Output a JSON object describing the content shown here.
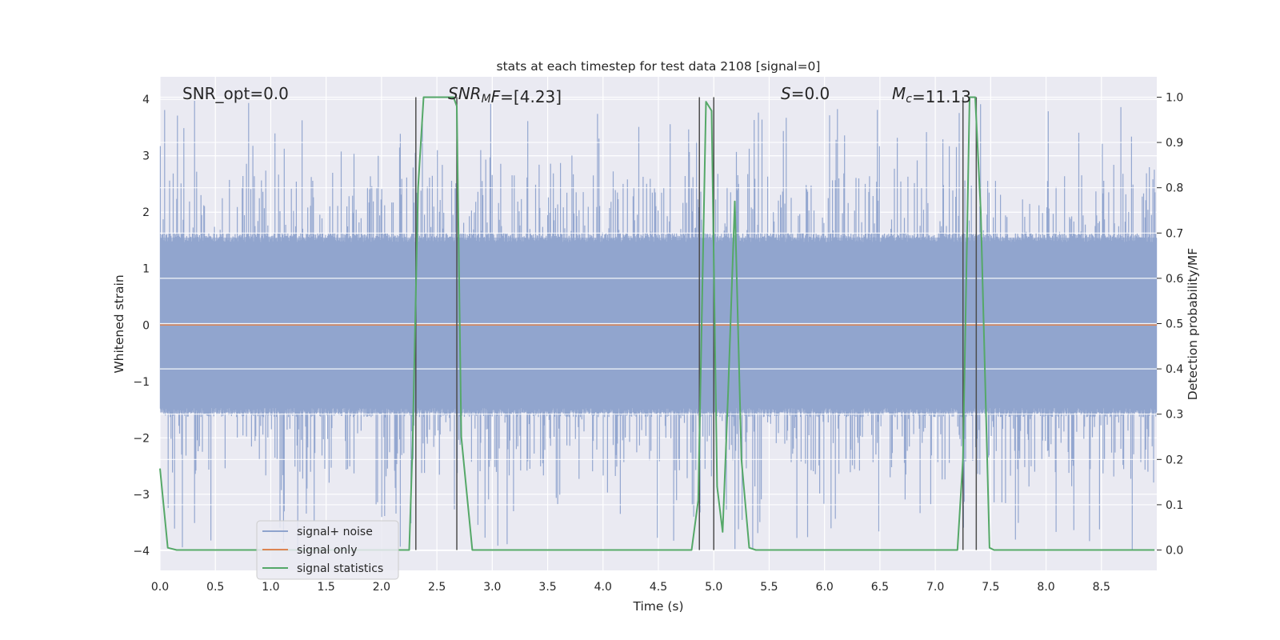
{
  "chart_data": {
    "type": "line",
    "title": "stats at each timestep for test data 2108 [signal=0]",
    "xlabel": "Time (s)",
    "ylabel_left": "Whitened strain",
    "ylabel_right": "Detection probability/MF",
    "xlim": [
      0.0,
      9.0
    ],
    "ylim_left": [
      -4.35,
      4.4
    ],
    "ylim_right": [
      -0.045,
      1.045
    ],
    "x_ticks": [
      "0.0",
      "0.5",
      "1.0",
      "1.5",
      "2.0",
      "2.5",
      "3.0",
      "3.5",
      "4.0",
      "4.5",
      "5.0",
      "5.5",
      "6.0",
      "6.5",
      "7.0",
      "7.5",
      "8.0",
      "8.5"
    ],
    "y_left_ticks": [
      "−4",
      "−3",
      "−2",
      "−1",
      "0",
      "1",
      "2",
      "3",
      "4"
    ],
    "y_right_ticks": [
      "0.0",
      "0.1",
      "0.2",
      "0.3",
      "0.4",
      "0.5",
      "0.6",
      "0.7",
      "0.8",
      "0.9",
      "1.0"
    ],
    "grid": true,
    "legend_position": "lower-left",
    "annotations": [
      {
        "segments": [
          {
            "text": "SNR_opt=0.0",
            "italic": false
          }
        ]
      },
      {
        "segments": [
          {
            "text": "SNR",
            "italic": true
          },
          {
            "text": "M",
            "italic": true,
            "sub": true
          },
          {
            "text": "F",
            "italic": true
          },
          {
            "text": "=[4.23]",
            "italic": false
          }
        ]
      },
      {
        "segments": [
          {
            "text": "S",
            "italic": true
          },
          {
            "text": "=0.0",
            "italic": false
          }
        ]
      },
      {
        "segments": [
          {
            "text": "M",
            "italic": true
          },
          {
            "text": "c",
            "italic": true,
            "sub": true
          },
          {
            "text": "=11.13",
            "italic": false
          }
        ]
      }
    ],
    "series": [
      {
        "name": "signal+ noise",
        "color": "#8fa3cd",
        "kind": "noise",
        "typical_range": [
          -1.6,
          1.6
        ],
        "peak_range": [
          -4.0,
          4.0
        ]
      },
      {
        "name": "signal only",
        "color": "#dd8452",
        "values_constant": 0.0
      },
      {
        "name": "signal statistics",
        "color": "#55a868",
        "axis": "right",
        "x": [
          0.0,
          0.07,
          0.15,
          2.25,
          2.28,
          2.33,
          2.38,
          2.45,
          2.65,
          2.68,
          2.72,
          2.82,
          4.8,
          4.86,
          4.93,
          4.98,
          5.03,
          5.08,
          5.13,
          5.19,
          5.25,
          5.32,
          5.38,
          5.43,
          7.2,
          7.25,
          7.31,
          7.36,
          7.41,
          7.49,
          7.53,
          8.98
        ],
        "y": [
          0.18,
          0.005,
          0.0,
          0.0,
          0.23,
          0.8,
          1.0,
          1.0,
          1.0,
          0.98,
          0.25,
          0.0,
          0.0,
          0.11,
          0.99,
          0.97,
          0.14,
          0.04,
          0.35,
          0.77,
          0.2,
          0.005,
          0.0,
          0.0,
          0.0,
          0.2,
          1.0,
          1.0,
          0.75,
          0.005,
          0.0,
          0.0
        ]
      }
    ],
    "vertical_lines_x": [
      2.31,
      2.68,
      4.87,
      5.0,
      7.25,
      7.37
    ],
    "vertical_lines_color": "#4d4d4d"
  }
}
